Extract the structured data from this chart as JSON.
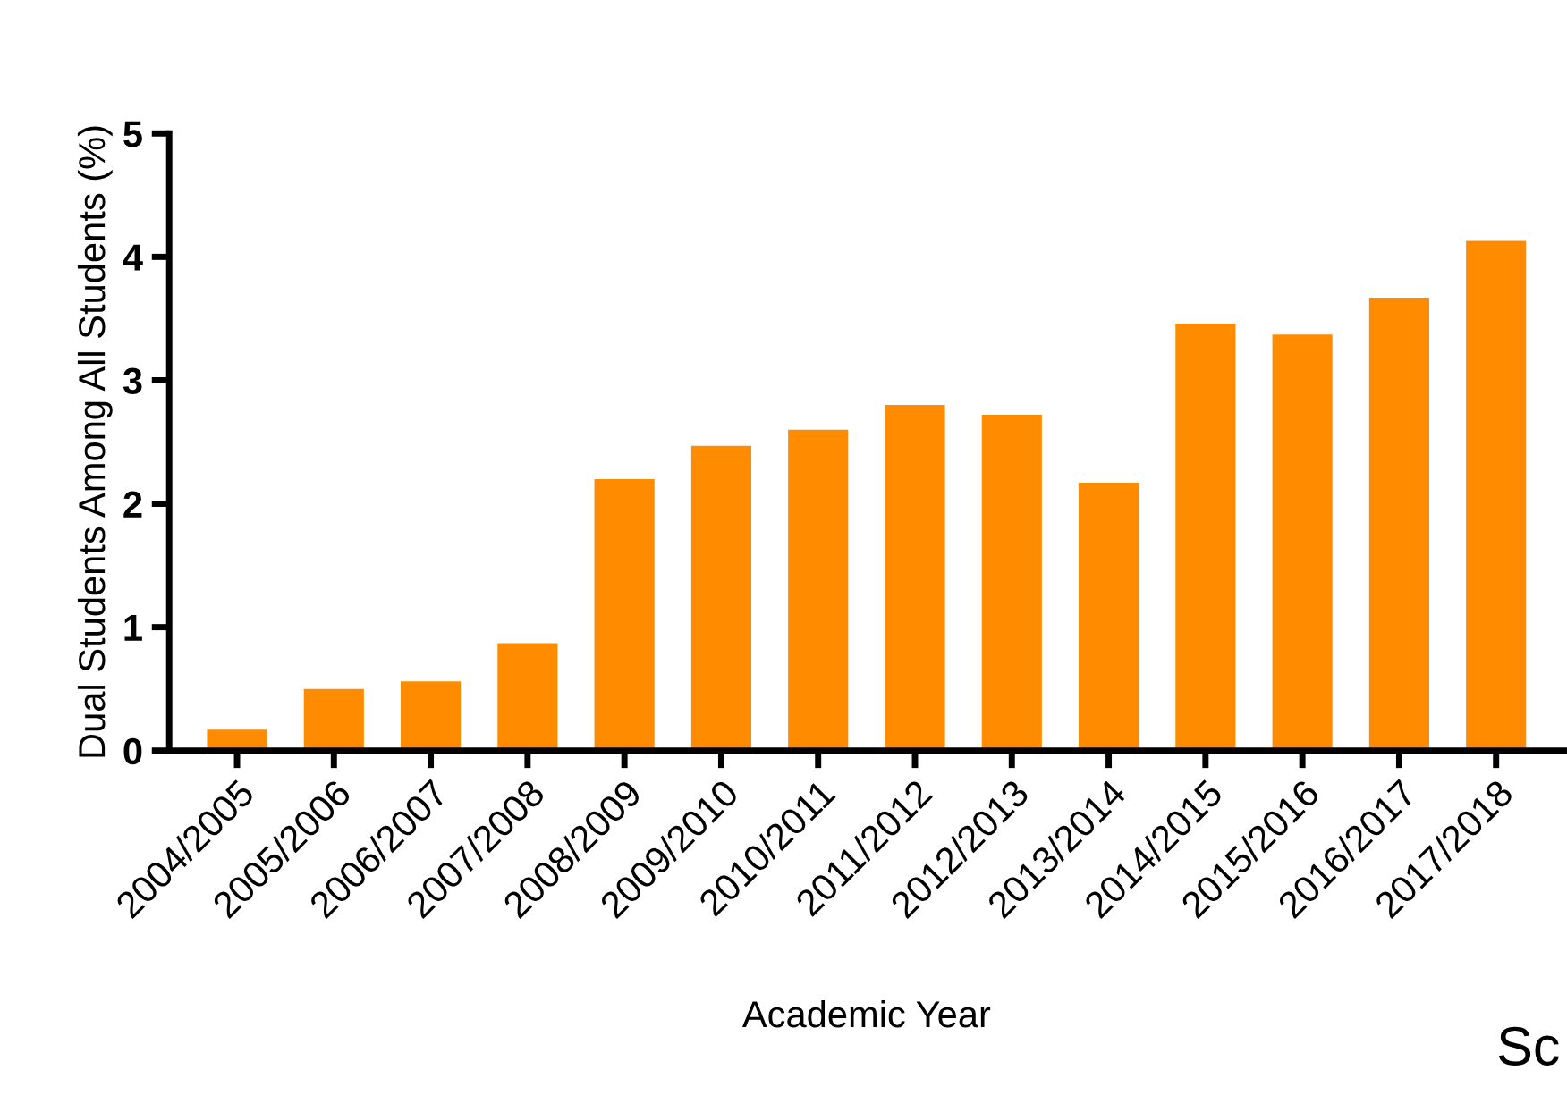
{
  "chart_data": {
    "type": "bar",
    "xlabel": "Academic Year",
    "ylabel": "Dual Students Among All Students (%)",
    "categories": [
      "2004/2005",
      "2005/2006",
      "2006/2007",
      "2007/2008",
      "2008/2009",
      "2009/2010",
      "2010/2011",
      "2011/2012",
      "2012/2013",
      "2013/2014",
      "2014/2015",
      "2015/2016",
      "2016/2017",
      "2017/2018"
    ],
    "values": [
      0.17,
      0.5,
      0.56,
      0.87,
      2.2,
      2.47,
      2.6,
      2.8,
      2.72,
      2.17,
      3.46,
      3.37,
      3.67,
      4.13
    ],
    "color": "#ff8c00",
    "ylim": [
      0,
      5
    ],
    "yticks": [
      0,
      1,
      2,
      3,
      4,
      5
    ],
    "grid": false,
    "legend": false,
    "annotations": [
      "Sc"
    ]
  }
}
